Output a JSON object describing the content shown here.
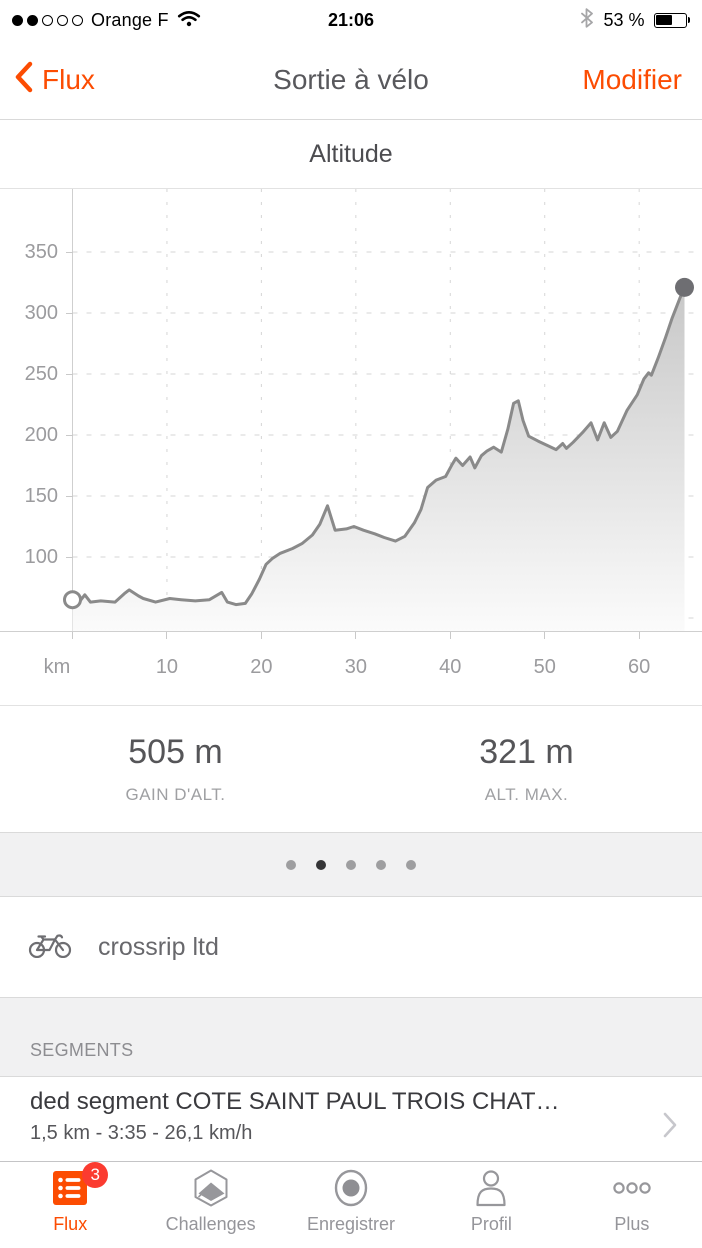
{
  "colors": {
    "accent": "#fc4c02",
    "badge_red": "#fb3b30",
    "chart_line": "#8a8a8a",
    "chart_end_marker": "#6e6e72",
    "grid": "#d6d6d6",
    "icon_gray": "#97979b"
  },
  "status_bar": {
    "signal_filled": 2,
    "signal_total": 5,
    "carrier": "Orange F",
    "wifi_icon": "wifi-icon",
    "time": "21:06",
    "bluetooth_icon": "bluetooth-icon",
    "battery_percent": "53 %",
    "battery_icon": "battery-icon"
  },
  "nav": {
    "back_label": "Flux",
    "back_icon": "chevron-left-icon",
    "title": "Sortie à vélo",
    "action_label": "Modifier"
  },
  "chart_data": {
    "type": "area",
    "title": "Altitude",
    "xlabel": "km",
    "ylabel": "m",
    "x_ticks": [
      10,
      20,
      30,
      40,
      50,
      60
    ],
    "y_tick_labels": [
      350,
      300,
      250,
      200,
      150,
      100
    ],
    "y_gridlines": [
      350,
      300,
      250,
      200,
      150,
      100,
      50
    ],
    "xlim": [
      0,
      66.6
    ],
    "ylim": [
      38,
      400
    ],
    "grid": "dashed",
    "start_marker": "open-circle",
    "end_marker": "filled-circle",
    "series": [
      {
        "name": "altitude_m",
        "points": [
          [
            0,
            65
          ],
          [
            0.8,
            64
          ],
          [
            1.3,
            69
          ],
          [
            1.9,
            63
          ],
          [
            3,
            64
          ],
          [
            4.5,
            63
          ],
          [
            5.5,
            70
          ],
          [
            6,
            73
          ],
          [
            7,
            68
          ],
          [
            7.5,
            66
          ],
          [
            8.8,
            63
          ],
          [
            10.3,
            66
          ],
          [
            11.5,
            65
          ],
          [
            13,
            64
          ],
          [
            14.5,
            65
          ],
          [
            15.8,
            71
          ],
          [
            16.4,
            63
          ],
          [
            17.3,
            61
          ],
          [
            18.3,
            62
          ],
          [
            19,
            70
          ],
          [
            19.8,
            82
          ],
          [
            20.5,
            94
          ],
          [
            21.2,
            99
          ],
          [
            22,
            103
          ],
          [
            23.3,
            107
          ],
          [
            24.3,
            111
          ],
          [
            25.4,
            118
          ],
          [
            26.2,
            127
          ],
          [
            27,
            142
          ],
          [
            27.8,
            122
          ],
          [
            29,
            123
          ],
          [
            29.8,
            125
          ],
          [
            30.8,
            122
          ],
          [
            32,
            119
          ],
          [
            33,
            116
          ],
          [
            34.2,
            113
          ],
          [
            35.2,
            117
          ],
          [
            36.2,
            128
          ],
          [
            36.9,
            139
          ],
          [
            37.6,
            157
          ],
          [
            38.5,
            163
          ],
          [
            39.5,
            166
          ],
          [
            40.2,
            176
          ],
          [
            40.6,
            181
          ],
          [
            41.3,
            175
          ],
          [
            42.1,
            182
          ],
          [
            42.6,
            173
          ],
          [
            43.3,
            183
          ],
          [
            43.9,
            187
          ],
          [
            44.6,
            190
          ],
          [
            45.4,
            186
          ],
          [
            46.1,
            205
          ],
          [
            46.7,
            226
          ],
          [
            47.2,
            228
          ],
          [
            47.7,
            212
          ],
          [
            48.3,
            199
          ],
          [
            49.3,
            195
          ],
          [
            50.4,
            191
          ],
          [
            51.2,
            188
          ],
          [
            51.9,
            193
          ],
          [
            52.3,
            189
          ],
          [
            53,
            194
          ],
          [
            54,
            202
          ],
          [
            54.9,
            210
          ],
          [
            55.6,
            196
          ],
          [
            56.3,
            210
          ],
          [
            57,
            198
          ],
          [
            57.7,
            203
          ],
          [
            58.7,
            220
          ],
          [
            59.8,
            233
          ],
          [
            60.5,
            246
          ],
          [
            61,
            251
          ],
          [
            61.3,
            249
          ],
          [
            62,
            263
          ],
          [
            62.8,
            280
          ],
          [
            63.5,
            296
          ],
          [
            64.3,
            312
          ],
          [
            64.8,
            321
          ]
        ]
      }
    ]
  },
  "stats": [
    {
      "value": "505 m",
      "label": "GAIN D'ALT."
    },
    {
      "value": "321 m",
      "label": "ALT. MAX."
    }
  ],
  "pager": {
    "count": 5,
    "active_index": 1
  },
  "gear": {
    "icon": "bike-icon",
    "name": "crossrip ltd"
  },
  "segments": {
    "header": "SEGMENTS",
    "items": [
      {
        "title": "ded segment COTE SAINT PAUL TROIS CHAT…",
        "details": "1,5 km - 3:35 - 26,1 km/h",
        "chevron_icon": "chevron-right-icon"
      }
    ]
  },
  "tab_bar": {
    "items": [
      {
        "label": "Flux",
        "icon": "feed-list-icon",
        "badge": "3",
        "active": true
      },
      {
        "label": "Challenges",
        "icon": "challenges-hexagon-icon",
        "active": false
      },
      {
        "label": "Enregistrer",
        "icon": "record-icon",
        "active": false
      },
      {
        "label": "Profil",
        "icon": "profile-icon",
        "active": false
      },
      {
        "label": "Plus",
        "icon": "more-dots-icon",
        "active": false
      }
    ]
  }
}
